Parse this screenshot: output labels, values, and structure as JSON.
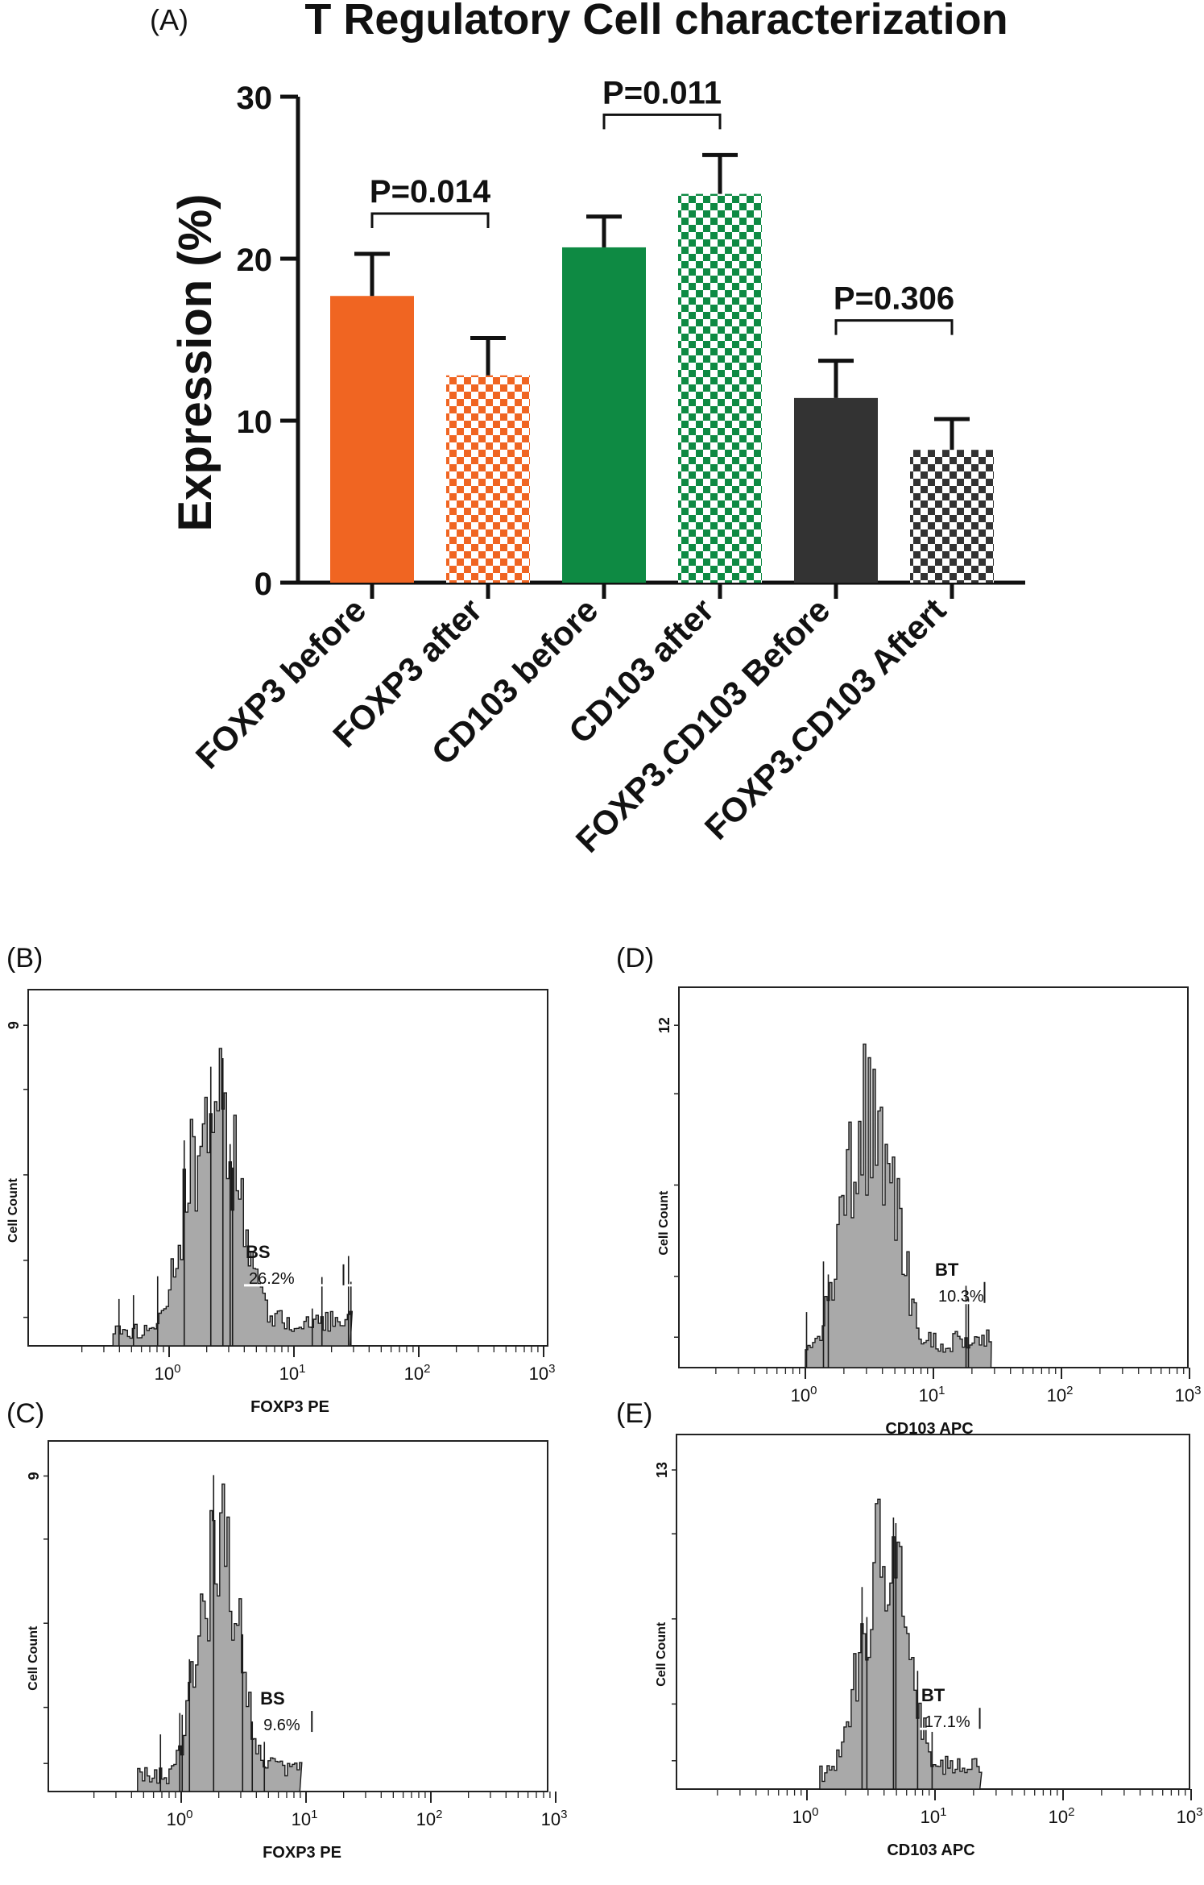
{
  "colors": {
    "orange": "#f06522",
    "green": "#0e8a43",
    "dark": "#333333",
    "hist_fill": "#a9a9a9",
    "frame": "#222222",
    "text": "#111111"
  },
  "chart_data": [
    {
      "panel_label": "(A)",
      "type": "bar",
      "title": "T Regulatory Cell characterization",
      "ylabel": "Expression (%)",
      "xlabel": "",
      "ylim": [
        0,
        30
      ],
      "yticks": [
        "0",
        "10",
        "20",
        "30"
      ],
      "ytick_values": [
        0,
        10,
        20,
        30
      ],
      "categories": [
        "FOXP3 before",
        "FOXP3 after",
        "CD103 before",
        "CD103 after",
        "FOXP3.CD103 Before",
        "FOXP3.CD103 Aftert"
      ],
      "values": [
        17.7,
        12.8,
        20.7,
        24.0,
        11.4,
        8.2
      ],
      "errors": [
        2.6,
        2.3,
        1.9,
        2.4,
        2.3,
        1.9
      ],
      "styles": [
        "solid",
        "checker",
        "solid",
        "checker",
        "solid",
        "checker"
      ],
      "bar_colors": [
        "orange",
        "orange",
        "green",
        "green",
        "dark",
        "dark"
      ],
      "comparisons": [
        {
          "pair": [
            0,
            1
          ],
          "label": "P=0.014"
        },
        {
          "pair": [
            2,
            3
          ],
          "label": "P=0.011"
        },
        {
          "pair": [
            4,
            5
          ],
          "label": "P=0.306"
        }
      ]
    },
    {
      "panel_label": "(B)",
      "type": "histogram",
      "xlabel": "FOXP3 PE",
      "ylabel": "Cell Count",
      "ymax_label": "9",
      "xticks": [
        "10^0",
        "10^1",
        "10^2",
        "10^3"
      ],
      "gate_label": "BS",
      "gate_percent": "26.2%",
      "peak_decade": 0.35,
      "spread_decades": 0.22,
      "min_decade": -0.45,
      "max_decade": 1.45,
      "gate_start_decade": 0.6,
      "gate_end_decade": 1.5
    },
    {
      "panel_label": "(C)",
      "type": "histogram",
      "xlabel": "FOXP3 PE",
      "ylabel": "Cell Count",
      "ymax_label": "9",
      "xticks": [
        "10^0",
        "10^1",
        "10^2",
        "10^3"
      ],
      "gate_label": "BS",
      "gate_percent": "9.6%",
      "peak_decade": 0.3,
      "spread_decades": 0.17,
      "min_decade": -0.35,
      "max_decade": 0.95,
      "gate_start_decade": 0.62,
      "gate_end_decade": 1.15
    },
    {
      "panel_label": "(D)",
      "type": "histogram",
      "xlabel": "CD103 APC",
      "ylabel": "Cell Count",
      "ymax_label": "12",
      "xticks": [
        "10^0",
        "10^1",
        "10^2",
        "10^3"
      ],
      "gate_label": "BT",
      "gate_percent": "10.3%",
      "peak_decade": 0.5,
      "spread_decades": 0.2,
      "min_decade": 0.0,
      "max_decade": 1.45,
      "gate_start_decade": 1.0,
      "gate_end_decade": 1.5
    },
    {
      "panel_label": "(E)",
      "type": "histogram",
      "xlabel": "CD103 APC",
      "ylabel": "Cell Count",
      "ymax_label": "13",
      "xticks": [
        "10^0",
        "10^1",
        "10^2",
        "10^3"
      ],
      "gate_label": "BT",
      "gate_percent": "17.1%",
      "peak_decade": 0.6,
      "spread_decades": 0.18,
      "min_decade": 0.1,
      "max_decade": 1.35,
      "gate_start_decade": 0.88,
      "gate_end_decade": 1.45
    }
  ]
}
